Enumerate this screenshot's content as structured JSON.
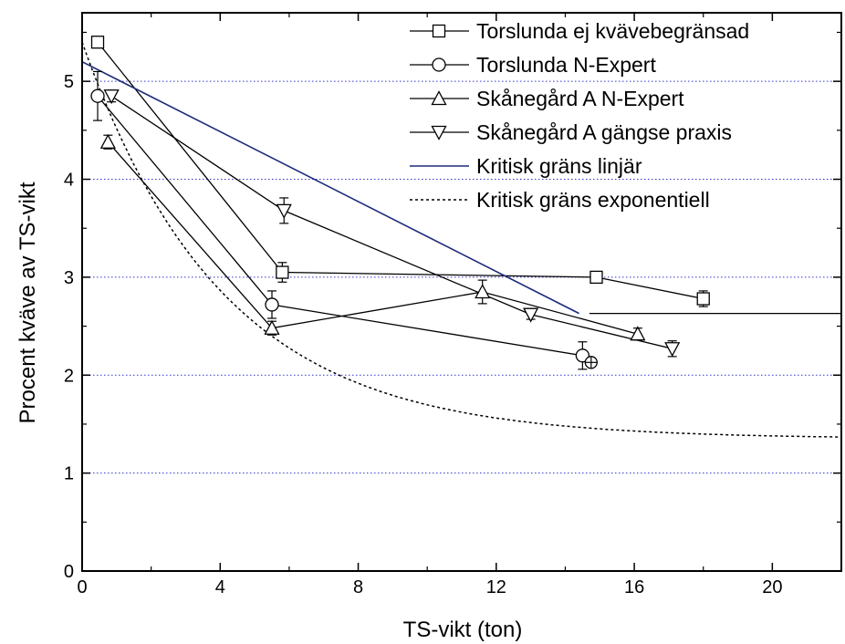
{
  "chart_data": {
    "type": "line",
    "title": "",
    "xlabel": "TS-vikt (ton)",
    "ylabel": "Procent kväve av TS-vikt",
    "xlim": [
      0,
      22
    ],
    "ylim": [
      0,
      5.7
    ],
    "xticks": [
      0,
      4,
      8,
      12,
      16,
      20
    ],
    "yticks": [
      0,
      1,
      2,
      3,
      4,
      5
    ],
    "grid": "horizontal dotted blue at y = 1, 2, 3, 4, 5",
    "legend_position": "top-right",
    "series": [
      {
        "name": "Torslunda ej kvävebegränsad",
        "marker": "square",
        "x": [
          0.45,
          5.8,
          14.9,
          18.0
        ],
        "y": [
          5.4,
          3.05,
          3.0,
          2.78
        ],
        "err": [
          0.0,
          0.1,
          0.05,
          0.08
        ]
      },
      {
        "name": "Torslunda N-Expert",
        "marker": "circle",
        "x": [
          0.45,
          5.5,
          14.5
        ],
        "y": [
          4.85,
          2.72,
          2.2
        ],
        "err": [
          0.25,
          0.14,
          0.14
        ]
      },
      {
        "name": "Skånegård A N-Expert",
        "marker": "triangle-up",
        "x": [
          0.75,
          5.5,
          11.6,
          16.1
        ],
        "y": [
          4.38,
          2.48,
          2.85,
          2.42
        ],
        "err": [
          0.07,
          0.07,
          0.12,
          0.06
        ]
      },
      {
        "name": "Skånegård A gängse praxis",
        "marker": "triangle-down",
        "x": [
          0.85,
          5.85,
          13.0,
          17.1
        ],
        "y": [
          4.85,
          3.68,
          2.62,
          2.27
        ],
        "err": [
          0.06,
          0.13,
          0.05,
          0.08
        ]
      },
      {
        "name": "Kritisk gräns linjär",
        "style": "solid",
        "color": "#1c2a7a",
        "x": [
          0.0,
          14.4
        ],
        "y": [
          5.2,
          2.63
        ],
        "extension": {
          "x": [
            14.7,
            22.0
          ],
          "y": [
            2.63,
            2.63
          ]
        }
      },
      {
        "name": "Kritisk gräns exponentiell",
        "style": "dotted",
        "color": "#000000",
        "formula": "y = 1.35 + 4.05 * exp(-x / 4.07)",
        "x": [
          0,
          2,
          4,
          6,
          8,
          10,
          12,
          14,
          16,
          18,
          20,
          22
        ],
        "y": [
          5.4,
          3.82,
          2.84,
          2.27,
          1.91,
          1.69,
          1.56,
          1.48,
          1.43,
          1.4,
          1.38,
          1.37
        ]
      }
    ],
    "extra_markers": [
      {
        "marker": "circle-plus",
        "x": 14.75,
        "y": 2.13
      }
    ]
  }
}
